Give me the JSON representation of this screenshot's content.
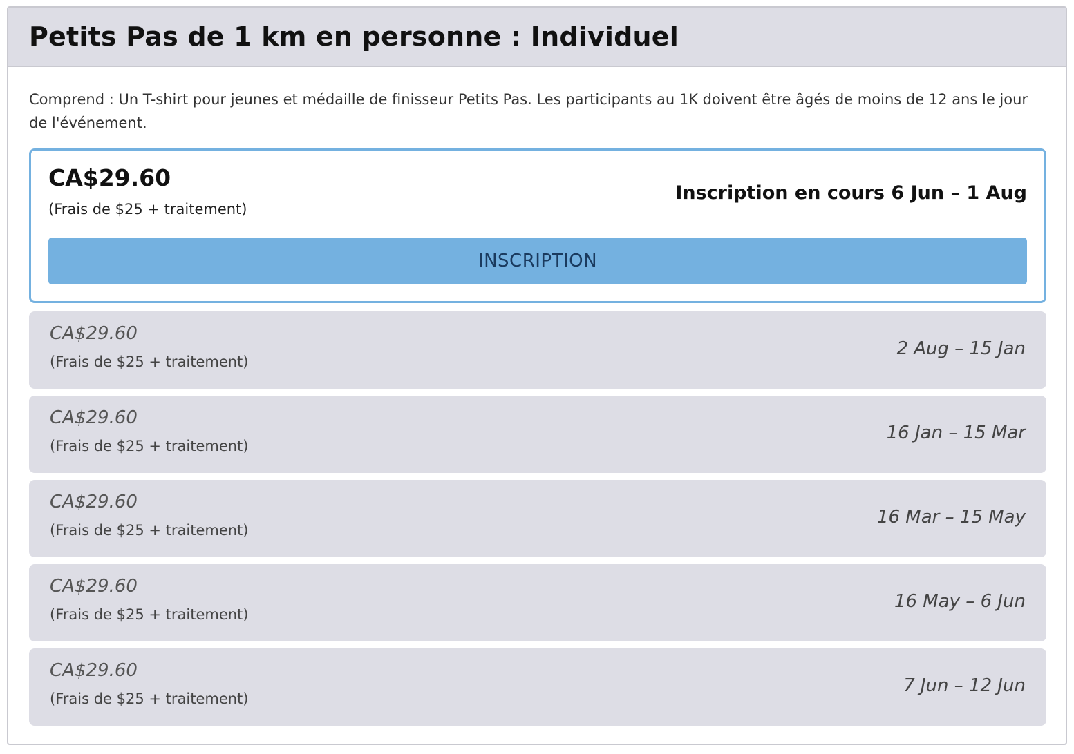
{
  "title": "Petits Pas de 1 km en personne : Individuel",
  "description": "Comprend : Un T-shirt pour jeunes et médaille de finisseur Petits Pas. Les participants au 1K doivent être âgés de moins de 12 ans le jour de l'événement.",
  "active_tier": {
    "price": "CA$29.60",
    "fee": "(Frais de $25 + traitement)",
    "status": "Inscription en cours 6 Jun – 1 Aug",
    "button_label": "INSCRIPTION"
  },
  "tiers": [
    {
      "price": "CA$29.60",
      "fee": "(Frais de $25 + traitement)",
      "dates": "2 Aug – 15 Jan"
    },
    {
      "price": "CA$29.60",
      "fee": "(Frais de $25 + traitement)",
      "dates": "16 Jan – 15 Mar"
    },
    {
      "price": "CA$29.60",
      "fee": "(Frais de $25 + traitement)",
      "dates": "16 Mar – 15 May"
    },
    {
      "price": "CA$29.60",
      "fee": "(Frais de $25 + traitement)",
      "dates": "16 May – 6 Jun"
    },
    {
      "price": "CA$29.60",
      "fee": "(Frais de $25 + traitement)",
      "dates": "7 Jun – 12 Jun"
    }
  ],
  "colors": {
    "accent": "#74b1e0",
    "header_bg": "#dddde5",
    "tier_bg": "#dddde5",
    "button_text": "#1a3a5e"
  }
}
